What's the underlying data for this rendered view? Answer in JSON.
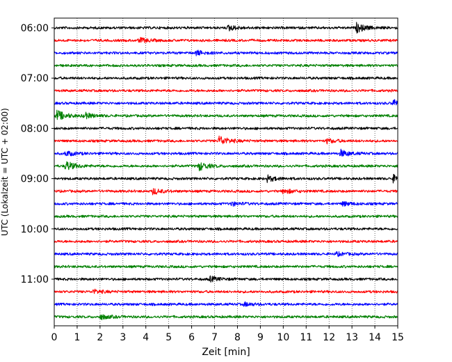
{
  "chart_data": {
    "type": "line",
    "title": "",
    "xlabel": "Zeit  [min]",
    "ylabel": "UTC (Lokalzeit = UTC + 02:00)",
    "xlim": [
      0,
      15
    ],
    "x_ticks": [
      0,
      1,
      2,
      3,
      4,
      5,
      6,
      7,
      8,
      9,
      10,
      11,
      12,
      13,
      14,
      15
    ],
    "x_tick_labels": [
      "0",
      "1",
      "2",
      "3",
      "4",
      "5",
      "6",
      "7",
      "8",
      "9",
      "10",
      "11",
      "12",
      "13",
      "14",
      "15"
    ],
    "y_tick_labels": [
      "06:00",
      "07:00",
      "08:00",
      "09:00",
      "10:00",
      "11:00"
    ],
    "y_tick_trace_index": [
      0,
      4,
      8,
      12,
      16,
      20
    ],
    "trace_minutes": 15,
    "vertical_grid": true,
    "grid_style": "dotted",
    "colors": [
      "#000000",
      "#ff0000",
      "#0000ff",
      "#008000"
    ],
    "traces": [
      {
        "start": "06:00",
        "color": "#000000",
        "events": [
          {
            "t": 7.6,
            "amp": 0.55
          },
          {
            "t": 13.2,
            "amp": 0.9
          }
        ]
      },
      {
        "start": "06:15",
        "color": "#ff0000",
        "events": [
          {
            "t": 3.7,
            "amp": 0.5
          }
        ]
      },
      {
        "start": "06:30",
        "color": "#0000ff",
        "events": [
          {
            "t": 6.2,
            "amp": 0.5
          }
        ]
      },
      {
        "start": "06:45",
        "color": "#008000",
        "events": []
      },
      {
        "start": "07:00",
        "color": "#000000",
        "events": []
      },
      {
        "start": "07:15",
        "color": "#ff0000",
        "events": []
      },
      {
        "start": "07:30",
        "color": "#0000ff",
        "events": [
          {
            "t": 14.8,
            "amp": 0.7
          }
        ]
      },
      {
        "start": "07:45",
        "color": "#008000",
        "events": [
          {
            "t": 0.1,
            "amp": 1.1
          },
          {
            "t": 1.3,
            "amp": 0.6
          }
        ]
      },
      {
        "start": "08:00",
        "color": "#000000",
        "events": []
      },
      {
        "start": "08:15",
        "color": "#ff0000",
        "events": [
          {
            "t": 7.2,
            "amp": 1.0
          },
          {
            "t": 11.9,
            "amp": 0.45
          }
        ]
      },
      {
        "start": "08:30",
        "color": "#0000ff",
        "events": [
          {
            "t": 0.5,
            "amp": 0.5
          },
          {
            "t": 12.5,
            "amp": 0.7
          }
        ]
      },
      {
        "start": "08:45",
        "color": "#008000",
        "events": [
          {
            "t": 0.5,
            "amp": 1.0
          },
          {
            "t": 6.3,
            "amp": 0.9
          }
        ]
      },
      {
        "start": "09:00",
        "color": "#000000",
        "events": [
          {
            "t": 9.3,
            "amp": 0.6
          },
          {
            "t": 14.8,
            "amp": 0.7
          }
        ]
      },
      {
        "start": "09:15",
        "color": "#ff0000",
        "events": [
          {
            "t": 4.3,
            "amp": 0.6
          },
          {
            "t": 10.0,
            "amp": 0.5
          }
        ]
      },
      {
        "start": "09:30",
        "color": "#0000ff",
        "events": [
          {
            "t": 7.7,
            "amp": 0.4
          },
          {
            "t": 12.6,
            "amp": 0.4
          }
        ]
      },
      {
        "start": "09:45",
        "color": "#008000",
        "events": []
      },
      {
        "start": "10:00",
        "color": "#000000",
        "events": []
      },
      {
        "start": "10:15",
        "color": "#ff0000",
        "events": []
      },
      {
        "start": "10:30",
        "color": "#0000ff",
        "events": [
          {
            "t": 12.3,
            "amp": 0.35
          }
        ]
      },
      {
        "start": "10:45",
        "color": "#008000",
        "events": []
      },
      {
        "start": "11:00",
        "color": "#000000",
        "events": [
          {
            "t": 6.8,
            "amp": 0.5
          }
        ]
      },
      {
        "start": "11:15",
        "color": "#ff0000",
        "events": [
          {
            "t": 1.7,
            "amp": 0.4
          }
        ]
      },
      {
        "start": "11:30",
        "color": "#0000ff",
        "events": [
          {
            "t": 8.3,
            "amp": 0.35
          }
        ]
      },
      {
        "start": "11:45",
        "color": "#008000",
        "events": [
          {
            "t": 2.0,
            "amp": 0.5
          }
        ]
      }
    ]
  }
}
